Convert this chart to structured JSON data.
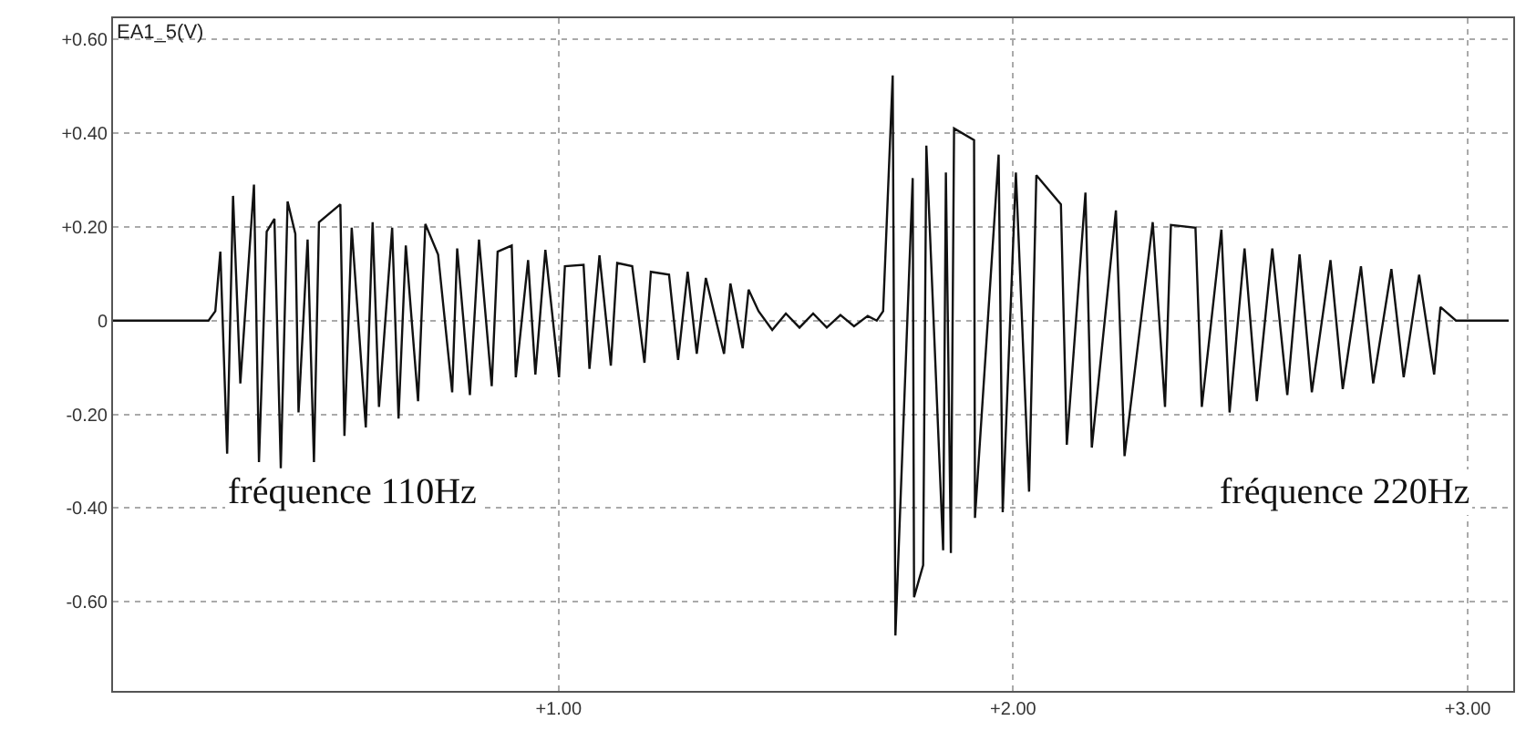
{
  "chart_data": {
    "type": "line",
    "ylabel": "EA1_5(V)",
    "x": [
      0.02,
      0.23,
      0.245,
      0.256,
      0.271,
      0.284,
      0.3,
      0.33,
      0.341,
      0.358,
      0.375,
      0.389,
      0.404,
      0.421,
      0.428,
      0.448,
      0.462,
      0.473,
      0.52,
      0.529,
      0.545,
      0.576,
      0.591,
      0.605,
      0.634,
      0.648,
      0.664,
      0.691,
      0.707,
      0.735,
      0.766,
      0.777,
      0.805,
      0.825,
      0.853,
      0.866,
      0.897,
      0.906,
      0.933,
      0.949,
      0.971,
      1.001,
      1.014,
      1.055,
      1.068,
      1.09,
      1.115,
      1.129,
      1.162,
      1.189,
      1.203,
      1.243,
      1.263,
      1.284,
      1.304,
      1.324,
      1.364,
      1.378,
      1.405,
      1.418,
      1.44,
      1.47,
      1.5,
      1.53,
      1.56,
      1.59,
      1.62,
      1.65,
      1.68,
      1.7,
      1.714,
      1.735,
      1.741,
      1.779,
      1.782,
      1.802,
      1.809,
      1.846,
      1.852,
      1.863,
      1.87,
      1.914,
      1.916,
      1.968,
      1.977,
      2.006,
      2.035,
      2.051,
      2.105,
      2.118,
      2.159,
      2.173,
      2.226,
      2.245,
      2.307,
      2.334,
      2.347,
      2.401,
      2.415,
      2.458,
      2.476,
      2.509,
      2.536,
      2.57,
      2.603,
      2.63,
      2.657,
      2.698,
      2.725,
      2.765,
      2.792,
      2.832,
      2.859,
      2.893,
      2.926,
      2.94,
      2.974,
      3.09
    ],
    "series": [
      {
        "color": "#111111",
        "values": [
          0,
          0,
          0.02,
          0.147,
          -0.284,
          0.266,
          -0.134,
          0.29,
          -0.302,
          0.19,
          0.217,
          -0.315,
          0.254,
          0.185,
          -0.196,
          0.173,
          -0.302,
          0.21,
          0.248,
          -0.246,
          0.198,
          -0.228,
          0.21,
          -0.184,
          0.198,
          -0.209,
          0.16,
          -0.172,
          0.206,
          0.141,
          -0.153,
          0.154,
          -0.159,
          0.173,
          -0.14,
          0.147,
          0.16,
          -0.121,
          0.129,
          -0.115,
          0.151,
          -0.121,
          0.116,
          0.119,
          -0.103,
          0.139,
          -0.096,
          0.123,
          0.116,
          -0.09,
          0.104,
          0.098,
          -0.084,
          0.104,
          -0.071,
          0.091,
          -0.071,
          0.079,
          -0.059,
          0.066,
          0.02,
          -0.02,
          0.015,
          -0.015,
          0.015,
          -0.015,
          0.012,
          -0.012,
          0.01,
          0,
          0.02,
          0.523,
          -0.672,
          0.304,
          -0.59,
          -0.522,
          0.373,
          -0.49,
          0.316,
          -0.496,
          0.41,
          0.385,
          -0.421,
          0.354,
          -0.409,
          0.316,
          -0.365,
          0.31,
          0.248,
          -0.265,
          0.273,
          -0.271,
          0.235,
          -0.289,
          0.21,
          -0.184,
          0.204,
          0.198,
          -0.184,
          0.194,
          -0.196,
          0.154,
          -0.172,
          0.154,
          -0.159,
          0.141,
          -0.153,
          0.129,
          -0.146,
          0.116,
          -0.134,
          0.11,
          -0.121,
          0.098,
          -0.115,
          0.029,
          0,
          0
        ]
      }
    ],
    "xlim": [
      0.02,
      3.1
    ],
    "ylim": [
      -0.79,
      0.645
    ],
    "xticks": [
      {
        "value": 1,
        "label": "+1.00"
      },
      {
        "value": 2,
        "label": "+2.00"
      },
      {
        "value": 3,
        "label": "+3.00"
      }
    ],
    "yticks": [
      {
        "value": 0.6,
        "label": "+0.60"
      },
      {
        "value": 0.4,
        "label": "+0.40"
      },
      {
        "value": 0.2,
        "label": "+0.20"
      },
      0,
      {
        "value": -0.2,
        "label": "-0.20"
      },
      {
        "value": -0.4,
        "label": "-0.40"
      },
      {
        "value": -0.6,
        "label": "-0.60"
      }
    ],
    "grid": true,
    "marker": "none",
    "line_style": "solid",
    "annotations": [
      "fréquence 110Hz",
      "fréquence 220Hz"
    ]
  }
}
